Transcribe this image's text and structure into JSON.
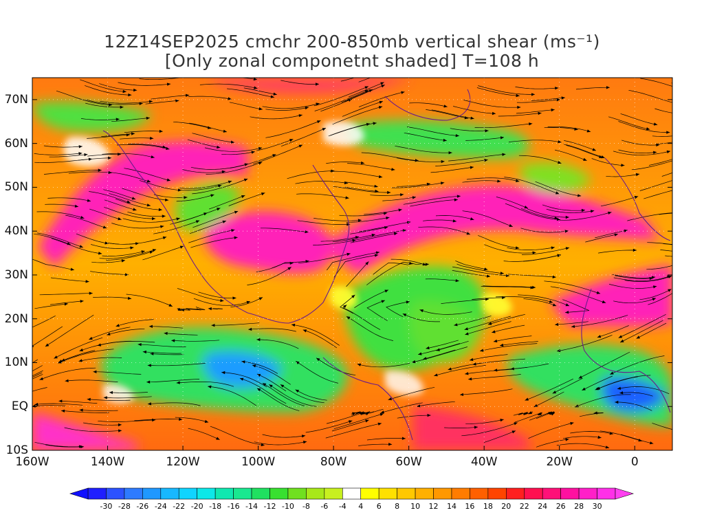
{
  "title": {
    "line1": "12Z14SEP2025 cmchr 200-850mb vertical shear (ms⁻¹)",
    "line2": "[Only zonal componetnt shaded] T=108 h"
  },
  "map": {
    "lon_range": [
      -160,
      10
    ],
    "lat_range": [
      -10,
      75
    ],
    "lat_ticks": [
      {
        "value": 70,
        "label": "70N"
      },
      {
        "value": 60,
        "label": "60N"
      },
      {
        "value": 50,
        "label": "50N"
      },
      {
        "value": 40,
        "label": "40N"
      },
      {
        "value": 30,
        "label": "30N"
      },
      {
        "value": 20,
        "label": "20N"
      },
      {
        "value": 10,
        "label": "10N"
      },
      {
        "value": 0,
        "label": "EQ"
      },
      {
        "value": -10,
        "label": "10S"
      }
    ],
    "lon_ticks": [
      {
        "value": -160,
        "label": "160W"
      },
      {
        "value": -140,
        "label": "140W"
      },
      {
        "value": -120,
        "label": "120W"
      },
      {
        "value": -100,
        "label": "100W"
      },
      {
        "value": -80,
        "label": "80W"
      },
      {
        "value": -60,
        "label": "60W"
      },
      {
        "value": -40,
        "label": "40W"
      },
      {
        "value": -20,
        "label": "20W"
      },
      {
        "value": 0,
        "label": "0"
      }
    ],
    "shaded_field": "zonal component of 200-850mb vertical shear",
    "overlay": "shear streamlines with arrows"
  },
  "colorbar": {
    "levels": [
      "-30",
      "-28",
      "-26",
      "-24",
      "-22",
      "-20",
      "-18",
      "-16",
      "-14",
      "-12",
      "-10",
      "-8",
      "-6",
      "-4",
      "4",
      "6",
      "8",
      "10",
      "12",
      "14",
      "16",
      "18",
      "20",
      "22",
      "24",
      "26",
      "28",
      "30"
    ],
    "colors": [
      "#1f1fff",
      "#2c52ff",
      "#2e7bff",
      "#1f98ff",
      "#17b8ff",
      "#10d4ff",
      "#0de8e8",
      "#10e8b0",
      "#1ae890",
      "#20e060",
      "#38e030",
      "#70e020",
      "#a8e81a",
      "#c8f020",
      "#ffffff",
      "#ffff00",
      "#ffe000",
      "#ffc800",
      "#ffb000",
      "#ff9800",
      "#ff7c00",
      "#ff6000",
      "#ff4400",
      "#ff2020",
      "#ff1050",
      "#ff1078",
      "#ff10a0",
      "#ff20c8",
      "#ff30e8"
    ]
  }
}
